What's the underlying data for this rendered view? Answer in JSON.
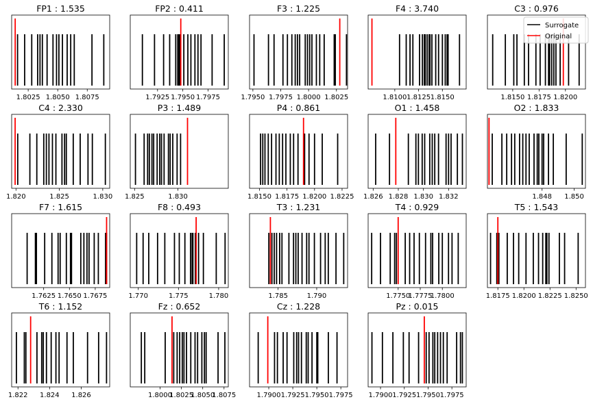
{
  "figure": {
    "legend": {
      "items": [
        {
          "label": "Surrogate",
          "color": "#000000"
        },
        {
          "label": "Original",
          "color": "#ff0000"
        }
      ],
      "placement": "upper-right"
    },
    "colors": {
      "surrogate": "#000000",
      "original": "#ff0000"
    }
  },
  "chart_data": [
    {
      "type": "event-plot",
      "title": "FP1 : 1.535",
      "xlim": [
        1.8011,
        1.8094
      ],
      "xticks": [
        1.8025,
        1.805,
        1.8075
      ],
      "xtick_labels": [
        "1.8025",
        "1.8050",
        "1.8075"
      ],
      "original": 1.8014,
      "surrogate": [
        1.8016,
        1.8022,
        1.8028,
        1.8033,
        1.8035,
        1.8037,
        1.8041,
        1.8046,
        1.8049,
        1.8051,
        1.8054,
        1.8058,
        1.8061,
        1.8064,
        1.8079,
        1.8089
      ]
    },
    {
      "type": "event-plot",
      "title": "FP2 : 0.411",
      "xlim": [
        1.7898,
        1.7995
      ],
      "xticks": [
        1.7925,
        1.795,
        1.7975
      ],
      "xtick_labels": [
        "1.7925",
        "1.7950",
        "1.7975"
      ],
      "original": 1.7948,
      "surrogate": [
        1.791,
        1.7922,
        1.7931,
        1.7937,
        1.7943,
        1.7945,
        1.7946,
        1.7947,
        1.7951,
        1.7955,
        1.7958,
        1.7962,
        1.7965,
        1.7968,
        1.7979,
        1.7991
      ]
    },
    {
      "type": "event-plot",
      "title": "F3 : 1.225",
      "xlim": [
        1.7947,
        1.8035
      ],
      "xticks": [
        1.795,
        1.7975,
        1.8,
        1.8025
      ],
      "xtick_labels": [
        "1.7950",
        "1.7975",
        "1.8000",
        "1.8025"
      ],
      "original": 1.8028,
      "surrogate": [
        1.7951,
        1.7964,
        1.7969,
        1.7977,
        1.7981,
        1.7985,
        1.7988,
        1.799,
        1.7992,
        1.7997,
        1.7999,
        1.8001,
        1.8003,
        1.8007,
        1.801,
        1.8014,
        1.8023,
        1.8024,
        1.8034
      ]
    },
    {
      "type": "event-plot",
      "title": "F4 : 3.740",
      "xlim": [
        1.8072,
        1.8175
      ],
      "xticks": [
        1.81,
        1.8125,
        1.815
      ],
      "xtick_labels": [
        "1.8100",
        "1.8125",
        "1.8150"
      ],
      "original": 1.8076,
      "surrogate": [
        1.8105,
        1.8112,
        1.8116,
        1.8119,
        1.8126,
        1.8129,
        1.8131,
        1.8132,
        1.8134,
        1.8136,
        1.8137,
        1.8139,
        1.8143,
        1.8146,
        1.815,
        1.8153,
        1.8155,
        1.8156,
        1.8168
      ]
    },
    {
      "type": "event-plot",
      "title": "C3 : 0.976",
      "xlim": [
        1.8126,
        1.8219
      ],
      "xticks": [
        1.815,
        1.8175,
        1.82
      ],
      "xtick_labels": [
        "1.8150",
        "1.8175",
        "1.8200"
      ],
      "original": 1.8198,
      "surrogate": [
        1.8131,
        1.8143,
        1.8151,
        1.8154,
        1.8161,
        1.8165,
        1.8172,
        1.8176,
        1.8181,
        1.8184,
        1.8185,
        1.8187,
        1.8189,
        1.8191,
        1.8195,
        1.8203,
        1.8213
      ]
    },
    {
      "type": "event-plot",
      "title": "C4 : 2.330",
      "xlim": [
        1.8195,
        1.8308
      ],
      "xticks": [
        1.82,
        1.825,
        1.83
      ],
      "xtick_labels": [
        "1.820",
        "1.825",
        "1.830"
      ],
      "original": 1.8199,
      "surrogate": [
        1.8202,
        1.8216,
        1.8224,
        1.8232,
        1.8235,
        1.8238,
        1.8242,
        1.8246,
        1.8253,
        1.8256,
        1.8258,
        1.8266,
        1.8274,
        1.8283,
        1.8288,
        1.8303
      ]
    },
    {
      "type": "event-plot",
      "title": "P3 : 1.489",
      "xlim": [
        1.8245,
        1.8358
      ],
      "xticks": [
        1.825,
        1.83
      ],
      "xtick_labels": [
        "1.825",
        "1.830"
      ],
      "original": 1.8311,
      "surrogate": [
        1.8251,
        1.8261,
        1.8265,
        1.8267,
        1.827,
        1.8272,
        1.8276,
        1.8279,
        1.8281,
        1.8284,
        1.8289,
        1.8291,
        1.8294,
        1.8299,
        1.8303
      ]
    },
    {
      "type": "event-plot",
      "title": "P4 : 0.861",
      "xlim": [
        1.8141,
        1.823
      ],
      "xticks": [
        1.815,
        1.8175,
        1.82,
        1.8225
      ],
      "xtick_labels": [
        "1.8150",
        "1.8175",
        "1.8200",
        "1.8225"
      ],
      "original": 1.819,
      "surrogate": [
        1.8151,
        1.8153,
        1.8155,
        1.8158,
        1.8161,
        1.8165,
        1.8168,
        1.8171,
        1.8174,
        1.8178,
        1.8181,
        1.8185,
        1.8191,
        1.8195,
        1.82,
        1.8207,
        1.8221
      ]
    },
    {
      "type": "event-plot",
      "title": "O1 : 1.458",
      "xlim": [
        1.8256,
        1.8334
      ],
      "xticks": [
        1.826,
        1.828,
        1.83,
        1.832
      ],
      "xtick_labels": [
        "1.826",
        "1.828",
        "1.830",
        "1.832"
      ],
      "original": 1.8278,
      "surrogate": [
        1.8262,
        1.8273,
        1.8288,
        1.8294,
        1.8296,
        1.8299,
        1.8301,
        1.8305,
        1.8307,
        1.8309,
        1.8312,
        1.8318,
        1.832,
        1.8322,
        1.8327,
        1.8331
      ]
    },
    {
      "type": "event-plot",
      "title": "O2 : 1.833",
      "xlim": [
        1.8446,
        1.8507
      ],
      "xticks": [
        1.848,
        1.85
      ],
      "xtick_labels": [
        "1.848",
        "1.850"
      ],
      "original": 1.8447,
      "surrogate": [
        1.8449,
        1.8455,
        1.8458,
        1.8461,
        1.8463,
        1.8466,
        1.8468,
        1.847,
        1.8472,
        1.8475,
        1.8477,
        1.8478,
        1.848,
        1.8481,
        1.8484,
        1.8487,
        1.8495,
        1.8505
      ]
    },
    {
      "type": "event-plot",
      "title": "F7 : 1.615",
      "xlim": [
        1.7594,
        1.7689
      ],
      "xticks": [
        1.7625,
        1.765,
        1.7675
      ],
      "xtick_labels": [
        "1.7625",
        "1.7650",
        "1.7675"
      ],
      "original": 1.7686,
      "surrogate": [
        1.7609,
        1.7617,
        1.7618,
        1.7626,
        1.7633,
        1.7639,
        1.7641,
        1.7647,
        1.7651,
        1.7652,
        1.7661,
        1.7664,
        1.7667,
        1.7669,
        1.7674,
        1.7678,
        1.7685,
        1.7686
      ]
    },
    {
      "type": "event-plot",
      "title": "F8 : 0.493",
      "xlim": [
        1.769,
        1.7812
      ],
      "xticks": [
        1.77,
        1.775,
        1.78
      ],
      "xtick_labels": [
        "1.770",
        "1.775",
        "1.780"
      ],
      "original": 1.7772,
      "surrogate": [
        1.7698,
        1.7706,
        1.7713,
        1.7724,
        1.7733,
        1.7745,
        1.7751,
        1.7758,
        1.7765,
        1.7767,
        1.7768,
        1.7771,
        1.7775,
        1.7781,
        1.7797,
        1.7808
      ]
    },
    {
      "type": "event-plot",
      "title": "T3 : 1.231",
      "xlim": [
        1.7813,
        1.794
      ],
      "xticks": [
        1.785,
        1.79
      ],
      "xtick_labels": [
        "1.785",
        "1.790"
      ],
      "original": 1.784,
      "surrogate": [
        1.7838,
        1.7842,
        1.7845,
        1.7848,
        1.7852,
        1.7855,
        1.7864,
        1.787,
        1.7873,
        1.7876,
        1.7881,
        1.7887,
        1.789,
        1.7897,
        1.7905,
        1.7911,
        1.7915,
        1.7925,
        1.7935
      ]
    },
    {
      "type": "event-plot",
      "title": "T4 : 0.929",
      "xlim": [
        1.7716,
        1.7827
      ],
      "xticks": [
        1.775,
        1.7775,
        1.78
      ],
      "xtick_labels": [
        "1.7750",
        "1.7775",
        "1.7800"
      ],
      "original": 1.775,
      "surrogate": [
        1.772,
        1.773,
        1.7741,
        1.7746,
        1.7748,
        1.7758,
        1.7763,
        1.7768,
        1.7774,
        1.7781,
        1.7787,
        1.7789,
        1.7796,
        1.78,
        1.7807,
        1.7811,
        1.7818
      ]
    },
    {
      "type": "event-plot",
      "title": "T5 : 1.543",
      "xlim": [
        1.8165,
        1.8259
      ],
      "xticks": [
        1.8175,
        1.82,
        1.8225,
        1.825
      ],
      "xtick_labels": [
        "1.8175",
        "1.8200",
        "1.8225",
        "1.8250"
      ],
      "original": 1.8175,
      "surrogate": [
        1.8168,
        1.8174,
        1.8176,
        1.8184,
        1.819,
        1.8195,
        1.8202,
        1.8209,
        1.8214,
        1.8218,
        1.8221,
        1.8222,
        1.8224,
        1.8234,
        1.8239,
        1.8252
      ]
    },
    {
      "type": "event-plot",
      "title": "T6 : 1.152",
      "xlim": [
        1.8216,
        1.8278
      ],
      "xticks": [
        1.822,
        1.824,
        1.826
      ],
      "xtick_labels": [
        "1.822",
        "1.824",
        "1.826"
      ],
      "original": 1.8228,
      "surrogate": [
        1.8219,
        1.8224,
        1.8225,
        1.8232,
        1.8235,
        1.8236,
        1.8238,
        1.8241,
        1.8244,
        1.8246,
        1.8251,
        1.8255,
        1.8264,
        1.8271,
        1.8276
      ]
    },
    {
      "type": "event-plot",
      "title": "Fz : 0.652",
      "xlim": [
        1.7965,
        1.808
      ],
      "xticks": [
        1.8,
        1.8025,
        1.805,
        1.8075
      ],
      "xtick_labels": [
        "1.8000",
        "1.8025",
        "1.8050",
        "1.8075"
      ],
      "original": 1.8014,
      "surrogate": [
        1.7978,
        1.7982,
        1.8006,
        1.8016,
        1.802,
        1.8023,
        1.8026,
        1.8028,
        1.8031,
        1.8036,
        1.8041,
        1.8044,
        1.8049,
        1.8052,
        1.8054,
        1.8068,
        1.8076
      ]
    },
    {
      "type": "event-plot",
      "title": "Cz : 1.228",
      "xlim": [
        1.788,
        1.7982
      ],
      "xticks": [
        1.79,
        1.7925,
        1.795,
        1.7975
      ],
      "xtick_labels": [
        "1.7900",
        "1.7925",
        "1.7950",
        "1.7975"
      ],
      "original": 1.7899,
      "surrogate": [
        1.7889,
        1.7906,
        1.7909,
        1.7915,
        1.7919,
        1.7926,
        1.7929,
        1.7931,
        1.7934,
        1.7939,
        1.7941,
        1.7945,
        1.795,
        1.7951,
        1.7962,
        1.7971
      ]
    },
    {
      "type": "event-plot",
      "title": "Pz : 0.015",
      "xlim": [
        1.7887,
        1.799
      ],
      "xticks": [
        1.79,
        1.7925,
        1.795,
        1.7975
      ],
      "xtick_labels": [
        "1.7900",
        "1.7925",
        "1.7950",
        "1.7975"
      ],
      "original": 1.7946,
      "surrogate": [
        1.7891,
        1.7902,
        1.7913,
        1.7924,
        1.793,
        1.794,
        1.7948,
        1.7951,
        1.7955,
        1.7957,
        1.796,
        1.7963,
        1.7966,
        1.797,
        1.798,
        1.7984,
        1.7986
      ]
    }
  ]
}
